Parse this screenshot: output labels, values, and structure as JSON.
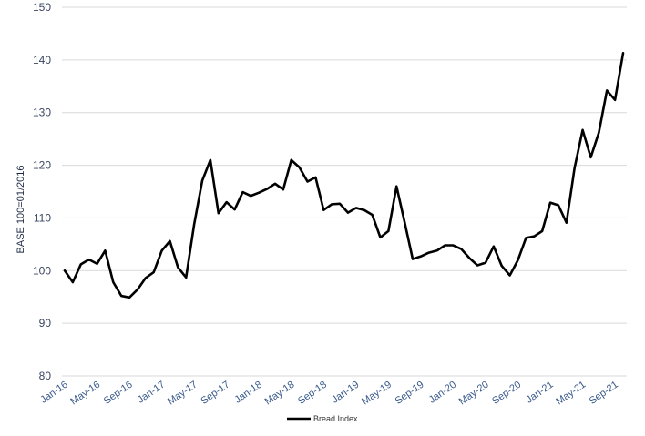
{
  "chart_data": {
    "type": "line",
    "title": "",
    "xlabel": "",
    "ylabel": "BASE 100=01/2016",
    "ylim": [
      80,
      150
    ],
    "yticks": [
      80,
      90,
      100,
      110,
      120,
      130,
      140,
      150
    ],
    "grid": true,
    "legend_position": "bottom-center",
    "x_tick_labels": [
      "Jan-16",
      "May-16",
      "Sep-16",
      "Jan-17",
      "May-17",
      "Sep-17",
      "Jan-18",
      "May-18",
      "Sep-18",
      "Jan-19",
      "May-19",
      "Sep-19",
      "Jan-20",
      "May-20",
      "Sep-20",
      "Jan-21",
      "May-21",
      "Sep-21"
    ],
    "x": [
      "Jan-16",
      "Feb-16",
      "Mar-16",
      "Apr-16",
      "May-16",
      "Jun-16",
      "Jul-16",
      "Aug-16",
      "Sep-16",
      "Oct-16",
      "Nov-16",
      "Dec-16",
      "Jan-17",
      "Feb-17",
      "Mar-17",
      "Apr-17",
      "May-17",
      "Jun-17",
      "Jul-17",
      "Aug-17",
      "Sep-17",
      "Oct-17",
      "Nov-17",
      "Dec-17",
      "Jan-18",
      "Feb-18",
      "Mar-18",
      "Apr-18",
      "May-18",
      "Jun-18",
      "Jul-18",
      "Aug-18",
      "Sep-18",
      "Oct-18",
      "Nov-18",
      "Dec-18",
      "Jan-19",
      "Feb-19",
      "Mar-19",
      "Apr-19",
      "May-19",
      "Jun-19",
      "Jul-19",
      "Aug-19",
      "Sep-19",
      "Oct-19",
      "Nov-19",
      "Dec-19",
      "Jan-20",
      "Feb-20",
      "Mar-20",
      "Apr-20",
      "May-20",
      "Jun-20",
      "Jul-20",
      "Aug-20",
      "Sep-20",
      "Oct-20",
      "Nov-20",
      "Dec-20",
      "Jan-21",
      "Feb-21",
      "Mar-21",
      "Apr-21",
      "May-21",
      "Jun-21",
      "Jul-21",
      "Aug-21",
      "Sep-21",
      "Oct-21"
    ],
    "series": [
      {
        "name": "Bread Index",
        "color": "#000000",
        "values": [
          100,
          97.8,
          101.2,
          102.1,
          101.3,
          103.8,
          97.8,
          95.2,
          94.9,
          96.4,
          98.6,
          99.7,
          103.8,
          105.6,
          100.6,
          98.7,
          108.8,
          117.1,
          121.0,
          110.9,
          113.0,
          111.6,
          114.9,
          114.2,
          114.8,
          115.5,
          116.5,
          115.4,
          121.0,
          119.6,
          116.9,
          117.7,
          111.5,
          112.6,
          112.7,
          111.0,
          111.9,
          111.5,
          110.6,
          106.3,
          107.5,
          116.0,
          109.2,
          102.2,
          102.7,
          103.4,
          103.8,
          104.8,
          104.8,
          104.1,
          102.4,
          101.0,
          101.5,
          104.6,
          100.9,
          99.1,
          102.0,
          106.2,
          106.5,
          107.5,
          112.9,
          112.4,
          109.1,
          119.5,
          126.7,
          121.5,
          126.2,
          134.2,
          132.4,
          141.3
        ]
      }
    ]
  }
}
